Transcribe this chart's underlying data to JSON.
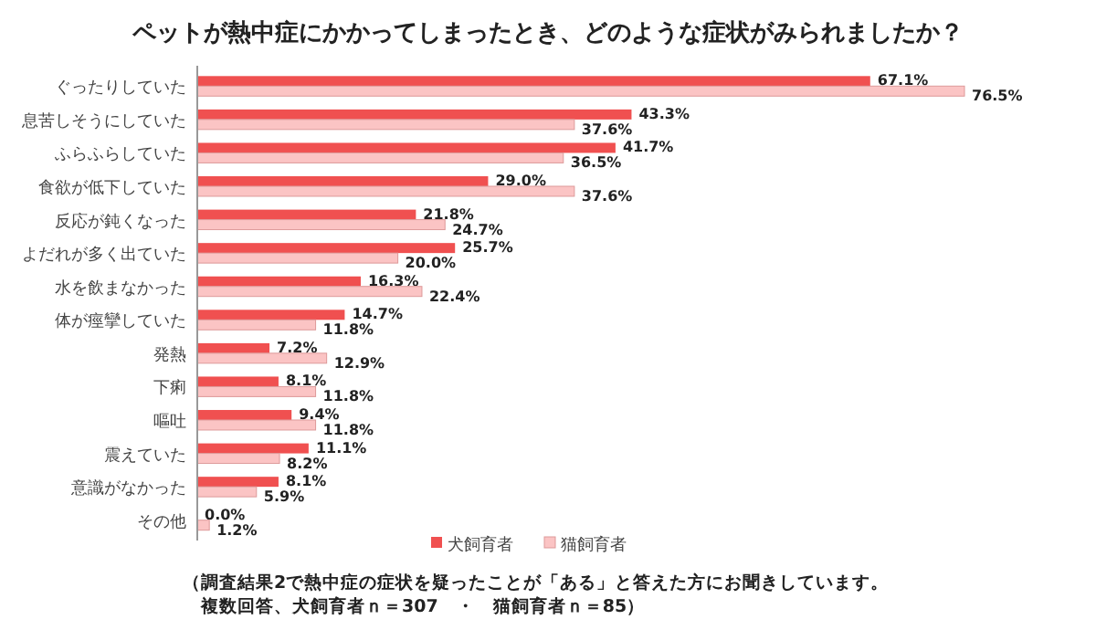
{
  "chart_data": {
    "type": "bar",
    "orientation": "horizontal",
    "title": "ペットが熱中症にかかってしまったとき、どのような症状がみられましたか？",
    "categories": [
      "ぐったりしていた",
      "息苦しそうにしていた",
      "ふらふらしていた",
      "食欲が低下していた",
      "反応が鈍くなった",
      "よだれが多く出ていた",
      "水を飲まなかった",
      "体が痙攣していた",
      "発熱",
      "下痢",
      "嘔吐",
      "震えていた",
      "意識がなかった",
      "その他"
    ],
    "series": [
      {
        "name": "犬飼育者",
        "color": "#f05050",
        "values": [
          67.1,
          43.3,
          41.7,
          29.0,
          21.8,
          25.7,
          16.3,
          14.7,
          7.2,
          8.1,
          9.4,
          11.1,
          8.1,
          0.0
        ],
        "value_labels": [
          "67.1%",
          "43.3%",
          "41.7%",
          "29.0%",
          "21.8%",
          "25.7%",
          "16.3%",
          "14.7%",
          "7.2%",
          "8.1%",
          "9.4%",
          "11.1%",
          "8.1%",
          "0.0%"
        ]
      },
      {
        "name": "猫飼育者",
        "color": "#fbc4c4",
        "values": [
          76.5,
          37.6,
          36.5,
          37.6,
          24.7,
          20.0,
          22.4,
          11.8,
          12.9,
          11.8,
          11.8,
          8.2,
          5.9,
          1.2
        ],
        "value_labels": [
          "76.5%",
          "37.6%",
          "36.5%",
          "37.6%",
          "24.7%",
          "20.0%",
          "22.4%",
          "11.8%",
          "12.9%",
          "11.8%",
          "11.8%",
          "8.2%",
          "5.9%",
          "1.2%"
        ]
      }
    ],
    "legend": "bottom",
    "annotations": [
      "（調査結果2で熱中症の症状を疑ったことが「ある」と答えた方にお聞きしています。",
      "複数回答、犬飼育者ｎ＝307　・　猫飼育者ｎ＝85）"
    ]
  }
}
